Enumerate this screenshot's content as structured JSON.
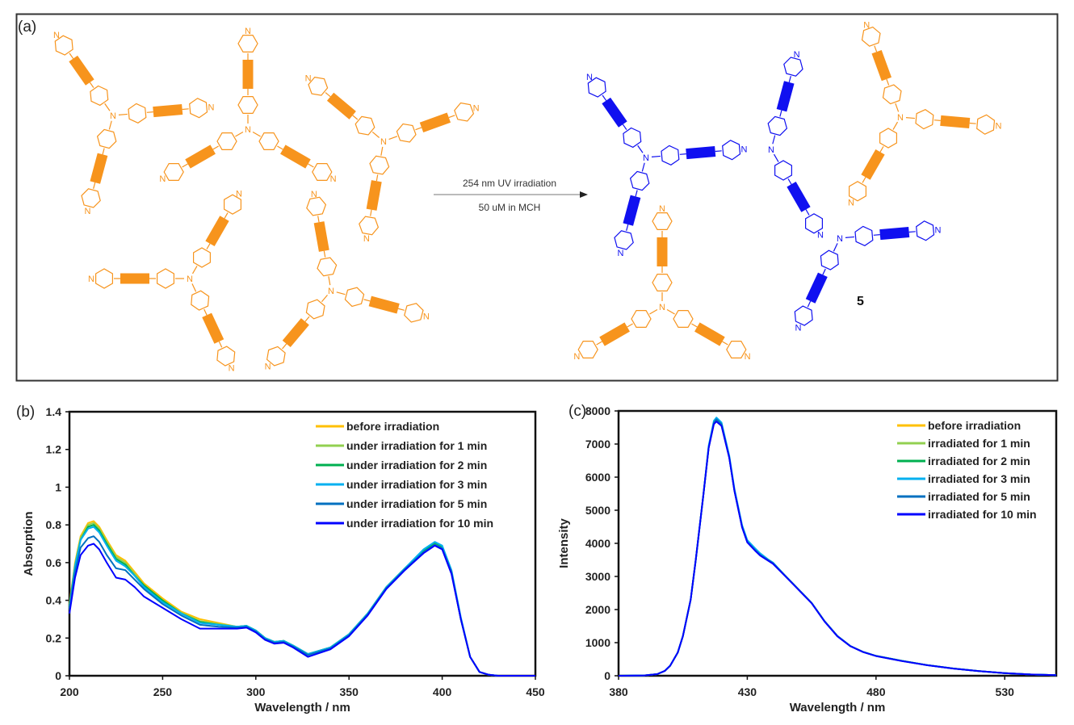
{
  "panel_a": {
    "label": "(a)",
    "arrow_top": "254 nm UV irradiation",
    "arrow_bottom": "50 uM in MCH",
    "compound_label": "5",
    "atom_label": "N",
    "colors": {
      "monomer": "#f7941d",
      "polymer": "#1010f0",
      "arrow": "#bbbbbb"
    }
  },
  "chart_data": [
    {
      "panel_label": "(b)",
      "type": "line",
      "title": "",
      "xlabel": "Wavelength / nm",
      "ylabel": "Absorption",
      "xlim": [
        200,
        450
      ],
      "ylim": [
        0,
        1.4
      ],
      "xticks": [
        200,
        250,
        300,
        350,
        400,
        450
      ],
      "yticks": [
        0,
        0.2,
        0.4,
        0.6,
        0.8,
        1,
        1.2,
        1.4
      ],
      "ytick_labels": [
        "0",
        "0.2",
        "0.4",
        "0.6",
        "0.8",
        "1",
        "1.2",
        "1.4"
      ],
      "grid": false,
      "legend_position": "top-right",
      "x": [
        200,
        203,
        206,
        210,
        213,
        216,
        220,
        225,
        230,
        235,
        240,
        250,
        260,
        270,
        280,
        290,
        295,
        300,
        305,
        310,
        315,
        320,
        328,
        340,
        350,
        360,
        370,
        380,
        390,
        396,
        400,
        405,
        410,
        415,
        420,
        425,
        430,
        450
      ],
      "series": [
        {
          "name": "before irradiation",
          "color": "#ffc000",
          "values": [
            0.38,
            0.6,
            0.74,
            0.81,
            0.82,
            0.79,
            0.72,
            0.64,
            0.61,
            0.55,
            0.49,
            0.41,
            0.34,
            0.3,
            0.28,
            0.26,
            0.265,
            0.24,
            0.2,
            0.18,
            0.185,
            0.16,
            0.115,
            0.15,
            0.22,
            0.33,
            0.47,
            0.57,
            0.66,
            0.7,
            0.68,
            0.55,
            0.3,
            0.1,
            0.02,
            0.005,
            0,
            0
          ]
        },
        {
          "name": "under irradiation for 1 min",
          "color": "#92d050",
          "values": [
            0.37,
            0.59,
            0.73,
            0.8,
            0.81,
            0.78,
            0.71,
            0.63,
            0.6,
            0.54,
            0.48,
            0.4,
            0.335,
            0.29,
            0.275,
            0.26,
            0.265,
            0.24,
            0.2,
            0.18,
            0.185,
            0.16,
            0.115,
            0.15,
            0.22,
            0.33,
            0.47,
            0.57,
            0.66,
            0.7,
            0.68,
            0.55,
            0.3,
            0.1,
            0.02,
            0.005,
            0,
            0
          ]
        },
        {
          "name": "under irradiation for 2 min",
          "color": "#00b050",
          "values": [
            0.37,
            0.58,
            0.72,
            0.79,
            0.8,
            0.77,
            0.7,
            0.62,
            0.59,
            0.53,
            0.48,
            0.4,
            0.33,
            0.285,
            0.27,
            0.26,
            0.265,
            0.24,
            0.2,
            0.18,
            0.185,
            0.16,
            0.115,
            0.15,
            0.22,
            0.33,
            0.47,
            0.57,
            0.66,
            0.705,
            0.685,
            0.55,
            0.3,
            0.1,
            0.02,
            0.005,
            0,
            0
          ]
        },
        {
          "name": "under irradiation for 3 min",
          "color": "#00b0f0",
          "values": [
            0.36,
            0.58,
            0.72,
            0.78,
            0.79,
            0.76,
            0.69,
            0.61,
            0.58,
            0.53,
            0.47,
            0.39,
            0.33,
            0.28,
            0.27,
            0.26,
            0.265,
            0.24,
            0.2,
            0.18,
            0.185,
            0.16,
            0.115,
            0.15,
            0.22,
            0.33,
            0.47,
            0.57,
            0.67,
            0.71,
            0.69,
            0.56,
            0.31,
            0.1,
            0.02,
            0.005,
            0,
            0
          ]
        },
        {
          "name": "under irradiation for 5 min",
          "color": "#0070c0",
          "values": [
            0.35,
            0.55,
            0.68,
            0.73,
            0.74,
            0.71,
            0.64,
            0.57,
            0.56,
            0.51,
            0.46,
            0.38,
            0.32,
            0.27,
            0.26,
            0.255,
            0.26,
            0.235,
            0.195,
            0.175,
            0.18,
            0.155,
            0.11,
            0.145,
            0.215,
            0.325,
            0.465,
            0.565,
            0.655,
            0.695,
            0.675,
            0.55,
            0.3,
            0.1,
            0.02,
            0.005,
            0,
            0
          ]
        },
        {
          "name": "under irradiation for 10 min",
          "color": "#0000ff",
          "values": [
            0.33,
            0.52,
            0.64,
            0.69,
            0.7,
            0.67,
            0.6,
            0.52,
            0.51,
            0.47,
            0.42,
            0.36,
            0.3,
            0.25,
            0.25,
            0.25,
            0.255,
            0.23,
            0.19,
            0.17,
            0.175,
            0.15,
            0.1,
            0.14,
            0.21,
            0.32,
            0.46,
            0.56,
            0.65,
            0.69,
            0.67,
            0.54,
            0.3,
            0.1,
            0.02,
            0.005,
            0,
            0
          ]
        }
      ]
    },
    {
      "panel_label": "(c)",
      "type": "line",
      "title": "",
      "xlabel": "Wavelength / nm",
      "ylabel": "Intensity",
      "xlim": [
        380,
        550
      ],
      "ylim": [
        0,
        8000
      ],
      "xticks": [
        380,
        430,
        480,
        530
      ],
      "yticks": [
        0,
        1000,
        2000,
        3000,
        4000,
        5000,
        6000,
        7000,
        8000
      ],
      "ytick_labels": [
        "0",
        "1000",
        "2000",
        "3000",
        "4000",
        "5000",
        "6000",
        "7000",
        "8000"
      ],
      "grid": false,
      "legend_position": "top-right",
      "x": [
        380,
        390,
        395,
        398,
        400,
        403,
        405,
        408,
        410,
        413,
        415,
        417,
        418,
        420,
        423,
        425,
        428,
        430,
        433,
        435,
        438,
        440,
        445,
        450,
        455,
        460,
        465,
        470,
        475,
        480,
        490,
        500,
        510,
        520,
        530,
        540,
        550
      ],
      "series": [
        {
          "name": "before irradiation",
          "color": "#ffc000",
          "values": [
            0,
            10,
            50,
            150,
            300,
            700,
            1200,
            2300,
            3500,
            5500,
            6900,
            7600,
            7700,
            7550,
            6600,
            5600,
            4500,
            4050,
            3800,
            3650,
            3500,
            3400,
            3000,
            2600,
            2200,
            1650,
            1200,
            900,
            720,
            600,
            450,
            320,
            220,
            140,
            80,
            40,
            20
          ]
        },
        {
          "name": "irradiated for 1 min",
          "color": "#92d050",
          "values": [
            0,
            10,
            50,
            150,
            300,
            700,
            1200,
            2300,
            3500,
            5500,
            6900,
            7620,
            7720,
            7570,
            6600,
            5600,
            4500,
            4050,
            3800,
            3650,
            3500,
            3400,
            3000,
            2600,
            2200,
            1650,
            1200,
            900,
            720,
            600,
            450,
            320,
            220,
            140,
            80,
            40,
            20
          ]
        },
        {
          "name": "irradiated for 2 min",
          "color": "#00b050",
          "values": [
            0,
            10,
            50,
            150,
            300,
            700,
            1200,
            2300,
            3500,
            5500,
            6900,
            7650,
            7750,
            7600,
            6600,
            5600,
            4500,
            4050,
            3800,
            3650,
            3500,
            3400,
            3000,
            2600,
            2200,
            1650,
            1200,
            900,
            720,
            600,
            450,
            320,
            220,
            140,
            80,
            40,
            20
          ]
        },
        {
          "name": "irradiated for 3 min",
          "color": "#00b0f0",
          "values": [
            0,
            10,
            50,
            150,
            300,
            700,
            1200,
            2300,
            3500,
            5500,
            6950,
            7700,
            7800,
            7650,
            6650,
            5650,
            4550,
            4100,
            3850,
            3700,
            3520,
            3420,
            3000,
            2600,
            2200,
            1650,
            1200,
            900,
            720,
            600,
            450,
            320,
            220,
            140,
            80,
            40,
            20
          ]
        },
        {
          "name": "irradiated for 5 min",
          "color": "#0070c0",
          "values": [
            0,
            10,
            50,
            150,
            300,
            700,
            1200,
            2300,
            3500,
            5500,
            6900,
            7650,
            7750,
            7600,
            6600,
            5600,
            4500,
            4050,
            3800,
            3650,
            3500,
            3400,
            3000,
            2600,
            2200,
            1650,
            1200,
            900,
            720,
            600,
            450,
            320,
            220,
            140,
            80,
            40,
            20
          ]
        },
        {
          "name": "irradiated for 10 min",
          "color": "#0000ff",
          "values": [
            0,
            10,
            50,
            150,
            300,
            700,
            1200,
            2300,
            3500,
            5500,
            6880,
            7600,
            7680,
            7550,
            6580,
            5580,
            4480,
            4030,
            3780,
            3630,
            3480,
            3380,
            2990,
            2590,
            2190,
            1640,
            1190,
            895,
            715,
            595,
            445,
            318,
            218,
            138,
            78,
            38,
            18
          ]
        }
      ]
    }
  ]
}
